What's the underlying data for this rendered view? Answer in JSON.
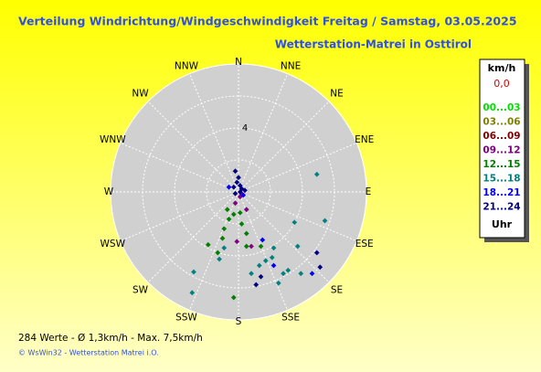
{
  "chart_data": {
    "type": "polar-scatter",
    "title": "Verteilung Windrichtung/Windgeschwindigkeit Freitag / Samstag, 03.05.2025",
    "subtitle": "Wetterstation-Matrei in Osttirol",
    "directions": [
      "N",
      "NNE",
      "NE",
      "ENE",
      "E",
      "ESE",
      "SE",
      "SSE",
      "S",
      "SSW",
      "SW",
      "WSW",
      "W",
      "WNW",
      "NW",
      "NNW"
    ],
    "rlim": [
      0,
      8
    ],
    "rgrid": [
      2,
      4,
      6,
      8
    ],
    "rticks": [
      4
    ],
    "legend": {
      "title": "km/h",
      "calm": "0,0",
      "footer": "Uhr"
    },
    "stats": "284 Werte   -   Ø 1,3km/h  -  Max. 7,5km/h",
    "credit": "© WsWin32  -  Wetterstation Matrei i.O.",
    "series": [
      {
        "name": "00...03",
        "color": "#00e000",
        "x": [],
        "y": []
      },
      {
        "name": "03...06",
        "color": "#808000",
        "x": [],
        "y": []
      },
      {
        "name": "06...09",
        "color": "#800000",
        "x": [],
        "y": []
      },
      {
        "name": "09...12",
        "color": "#800080",
        "x": [
          0.1,
          -0.2,
          -0.1,
          0.8,
          0.5,
          0.2
        ],
        "y": [
          -0.3,
          -0.7,
          -3.1,
          -3.4,
          -1.1,
          -0.1
        ]
      },
      {
        "name": "12...15",
        "color": "#008000",
        "x": [
          -0.7,
          -0.6,
          -0.3,
          -0.9,
          0.2,
          0.5,
          -1.0,
          -1.9,
          -1.3,
          0.5,
          1.4,
          -0.3,
          0.1
        ],
        "y": [
          -1.1,
          -1.7,
          -1.4,
          -2.3,
          -2.0,
          -2.6,
          -2.9,
          -3.3,
          -3.8,
          -3.4,
          -3.4,
          -6.6,
          -1.3
        ]
      },
      {
        "name": "15...18",
        "color": "#008080",
        "x": [
          4.9,
          5.4,
          3.5,
          2.2,
          2.8,
          3.1,
          1.7,
          1.3,
          0.8,
          2.1,
          -2.8,
          -2.9,
          -1.2,
          -0.9,
          2.5,
          3.9,
          3.7
        ],
        "y": [
          1.1,
          -1.8,
          -1.9,
          -3.5,
          -5.1,
          -4.9,
          -4.3,
          -4.6,
          -5.1,
          -4.1,
          -5.0,
          -6.3,
          -4.2,
          -3.5,
          -5.7,
          -5.1,
          -3.4
        ]
      },
      {
        "name": "18...21",
        "color": "#0000ff",
        "x": [
          1.5,
          2.2,
          4.6,
          -0.6,
          0.3
        ],
        "y": [
          -3.0,
          -4.6,
          -5.1,
          0.3,
          -0.2
        ]
      },
      {
        "name": "21...24",
        "color": "#000080",
        "x": [
          -0.2,
          0,
          -0.1,
          0.1,
          -0.3,
          0.2,
          0.1,
          -0.2,
          0.4,
          4.9,
          5.1,
          1.1,
          1.4
        ],
        "y": [
          1.3,
          0.9,
          0.6,
          0.4,
          0.3,
          0.2,
          0,
          -0.1,
          0.1,
          -3.8,
          -4.7,
          -5.8,
          -5.3
        ]
      }
    ]
  }
}
